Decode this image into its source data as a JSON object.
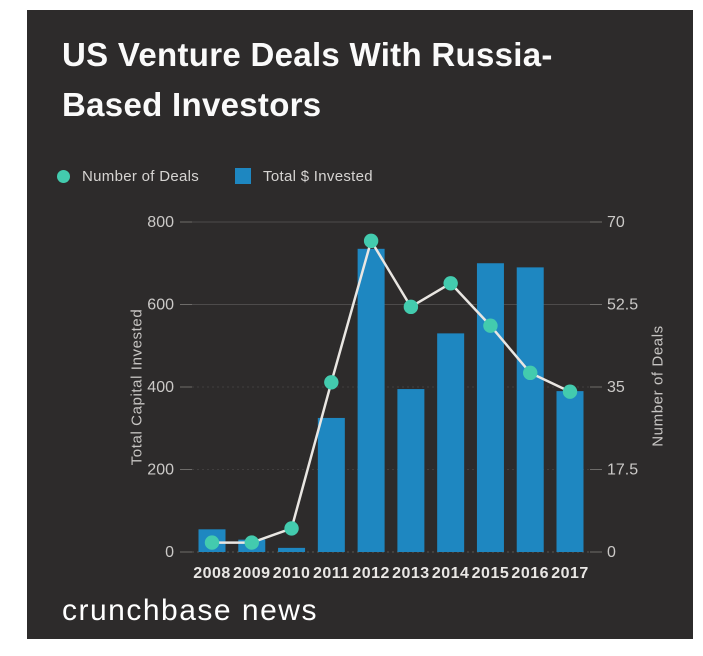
{
  "card": {
    "title_lines": [
      "US Venture Deals With Russia-",
      "Based Investors"
    ],
    "footer": "crunchbase news"
  },
  "legend": {
    "items": [
      {
        "label": "Number of Deals",
        "marker": "dot",
        "color": "#43cbae"
      },
      {
        "label": "Total $ Invested",
        "marker": "square",
        "color": "#1e87c1"
      }
    ]
  },
  "chart_data": {
    "type": "bar+line",
    "categories": [
      "2008",
      "2009",
      "2010",
      "2011",
      "2012",
      "2013",
      "2014",
      "2015",
      "2016",
      "2017"
    ],
    "series": [
      {
        "name": "Total $ Invested",
        "type": "bar",
        "axis": "left",
        "values": [
          55,
          30,
          10,
          325,
          735,
          395,
          530,
          700,
          690,
          390
        ],
        "color": "#1e87c1"
      },
      {
        "name": "Number of Deals",
        "type": "line",
        "axis": "right",
        "values": [
          2,
          2,
          5,
          36,
          66,
          52,
          57,
          48,
          38,
          34
        ],
        "color": "#43cbae",
        "line_color": "#e9e6e2"
      }
    ],
    "left_axis": {
      "label": "Total Capital Invested",
      "ticks": [
        0,
        200,
        400,
        600,
        800
      ],
      "range": [
        0,
        800
      ]
    },
    "right_axis": {
      "label": "Number of Deals",
      "ticks": [
        0,
        17.5,
        35,
        52.5,
        70
      ],
      "range": [
        0,
        70
      ]
    },
    "grid": "horizontal",
    "legend_position": "top-left"
  },
  "colors": {
    "background": "#ffffff",
    "card": "#2d2b2b",
    "bar": "#1e87c1",
    "point": "#43cbae",
    "line": "#e9e6e2",
    "grid_solid": "#4d4b4b",
    "grid_dashed": "#413f3f",
    "baseline": "#565452",
    "tick_text": "#cbc9c7",
    "year_text": "#e9e7e5",
    "title_text": "#fafafa"
  }
}
